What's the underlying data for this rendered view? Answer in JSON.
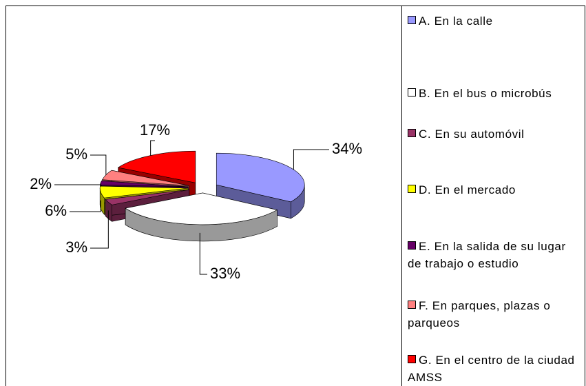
{
  "chart_data": {
    "type": "pie3d",
    "categories": [
      "A. En la calle",
      "B. En el bus o microbús",
      "C. En su automóvil",
      "D. En el mercado",
      "E. En la salida de su lugar de trabajo o estudio",
      "F. En parques, plazas o parqueos",
      "G. En el centro de la ciudad AMSS"
    ],
    "values": [
      34,
      33,
      3,
      6,
      2,
      5,
      17
    ],
    "value_labels": [
      "34%",
      "33%",
      "3%",
      "6%",
      "2%",
      "5%",
      "17%"
    ],
    "colors": [
      "#9999ff",
      "#ffffff",
      "#993366",
      "#ffff00",
      "#660066",
      "#ff8080",
      "#ff0000"
    ],
    "legend": "right"
  }
}
